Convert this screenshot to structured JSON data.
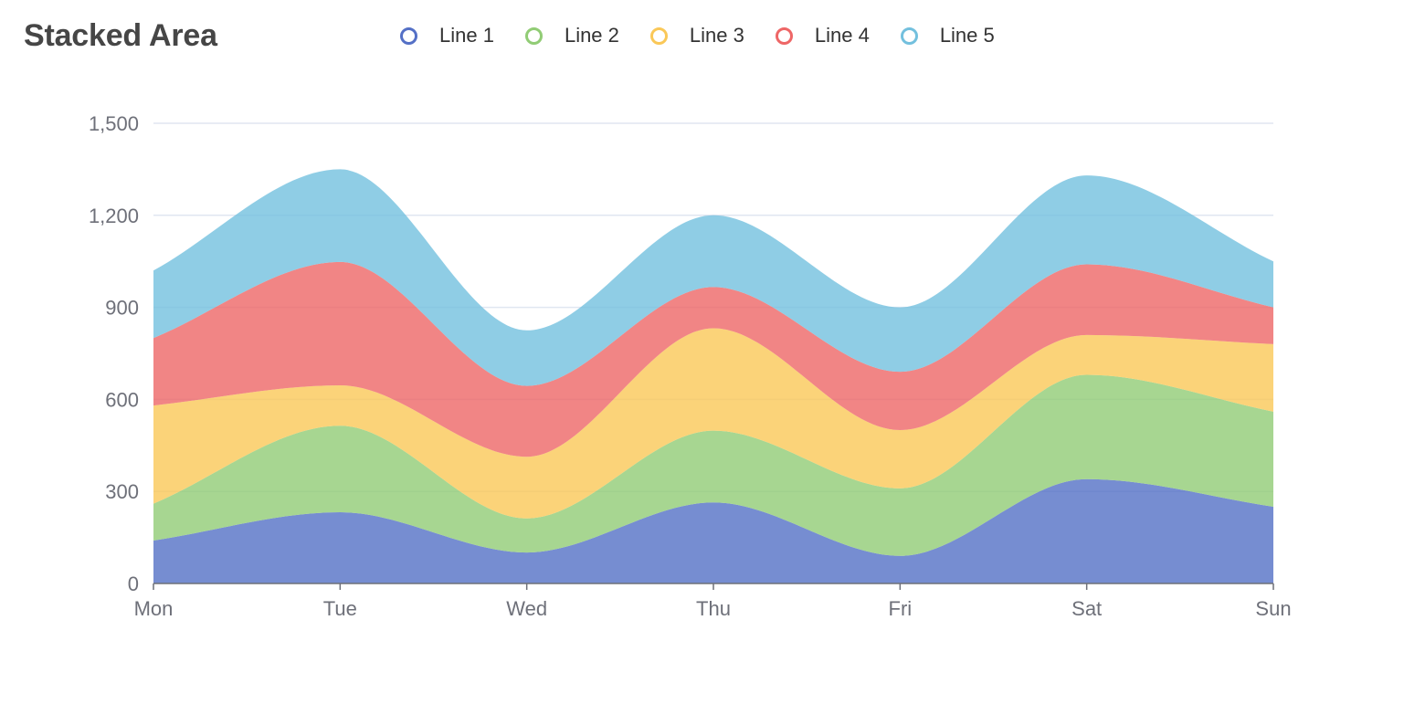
{
  "chart_data": {
    "type": "area",
    "stacked": true,
    "smooth": true,
    "title": "Stacked Area",
    "categories": [
      "Mon",
      "Tue",
      "Wed",
      "Thu",
      "Fri",
      "Sat",
      "Sun"
    ],
    "y_ticks": [
      "0",
      "300",
      "600",
      "900",
      "1,200",
      "1,500"
    ],
    "ylim": [
      0,
      1500
    ],
    "legend_position": "top",
    "series": [
      {
        "name": "Line 1",
        "color": "#5470c6",
        "values": [
          140,
          232,
          101,
          264,
          90,
          340,
          250
        ]
      },
      {
        "name": "Line 2",
        "color": "#91cc75",
        "values": [
          120,
          282,
          111,
          234,
          220,
          340,
          310
        ]
      },
      {
        "name": "Line 3",
        "color": "#fac858",
        "values": [
          320,
          132,
          201,
          334,
          190,
          130,
          220
        ]
      },
      {
        "name": "Line 4",
        "color": "#ee6666",
        "values": [
          220,
          402,
          231,
          134,
          190,
          230,
          120
        ]
      },
      {
        "name": "Line 5",
        "color": "#73c0de",
        "values": [
          220,
          302,
          181,
          234,
          210,
          290,
          150
        ]
      }
    ]
  }
}
